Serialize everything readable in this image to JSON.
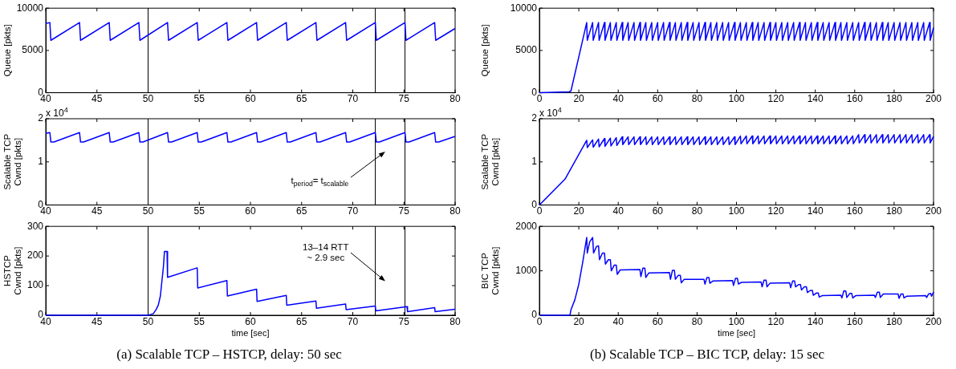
{
  "chart_data": [
    {
      "type": "line",
      "ylabel": "Queue [pkts]",
      "xlim": [
        40,
        80
      ],
      "xticks": [
        40,
        45,
        50,
        55,
        60,
        65,
        70,
        75,
        80
      ],
      "ylim": [
        0,
        10000
      ],
      "yticks": [
        0,
        5000,
        10000
      ],
      "ref_lines": [
        {
          "axis": "x",
          "value": 50
        },
        {
          "axis": "x",
          "value": 72.2
        },
        {
          "axis": "x",
          "value": 75.1
        }
      ],
      "series": [
        {
          "color": "#0000ff",
          "x": [
            40,
            40.4,
            40.5,
            43.3,
            43.4,
            46.2,
            46.3,
            49.1,
            49.2,
            51.9,
            52,
            54.8,
            54.9,
            57.7,
            57.8,
            60.6,
            60.7,
            63.5,
            63.6,
            66.4,
            66.5,
            69.3,
            69.4,
            72.2,
            72.3,
            75.1,
            75.2,
            78,
            78.1,
            80
          ],
          "values": [
            8200,
            8300,
            6200,
            8300,
            6200,
            8300,
            6200,
            8300,
            6200,
            8300,
            6200,
            8300,
            6200,
            8300,
            6200,
            8300,
            6200,
            8300,
            6200,
            8300,
            6200,
            8300,
            6200,
            8300,
            6200,
            8300,
            6200,
            8300,
            6200,
            7600
          ]
        }
      ]
    },
    {
      "type": "line",
      "ylabel": "Queue [pkts]",
      "xlim": [
        0,
        200
      ],
      "xticks": [
        0,
        20,
        40,
        60,
        80,
        100,
        120,
        140,
        160,
        180,
        200
      ],
      "ylim": [
        0,
        10000
      ],
      "yticks": [
        0,
        5000,
        10000
      ],
      "series": [
        {
          "color": "#0000ff",
          "x": [
            0,
            15,
            16,
            24,
            24.3,
            27,
            27.3,
            30,
            30.3,
            33,
            33.3,
            36,
            36.3,
            39,
            39.3,
            42,
            42.3,
            45,
            45.3,
            48,
            48.3,
            51,
            51.3,
            54,
            54.3,
            57,
            57.3,
            60,
            60.3,
            63,
            63.3,
            66,
            66.3,
            69,
            69.3,
            72,
            72.3,
            75,
            75.3,
            78,
            78.3,
            81,
            81.3,
            84,
            84.3,
            87,
            87.3,
            90,
            90.3,
            93,
            93.3,
            96,
            96.3,
            99,
            99.3,
            102,
            102.3,
            105,
            105.3,
            108,
            108.3,
            111,
            111.3,
            114,
            114.3,
            117,
            117.3,
            120,
            120.3,
            123,
            123.3,
            126,
            126.3,
            129,
            129.3,
            132,
            132.3,
            135,
            135.3,
            138,
            138.3,
            141,
            141.3,
            144,
            144.3,
            147,
            147.3,
            150,
            150.3,
            153,
            153.3,
            156,
            156.3,
            159,
            159.3,
            162,
            162.3,
            165,
            165.3,
            168,
            168.3,
            171,
            171.3,
            174,
            174.3,
            177,
            177.3,
            180,
            180.3,
            183,
            183.3,
            186,
            186.3,
            189,
            189.3,
            192,
            192.3,
            195,
            195.3,
            198,
            198.3,
            200
          ],
          "values": [
            0,
            100,
            200,
            8300,
            6200,
            8300,
            6200,
            8300,
            6200,
            8300,
            6200,
            8300,
            6200,
            8300,
            6200,
            8300,
            6200,
            8300,
            6200,
            8300,
            6200,
            8300,
            6200,
            8300,
            6200,
            8300,
            6200,
            8300,
            6200,
            8300,
            6200,
            8300,
            6200,
            8300,
            6200,
            8300,
            6200,
            8300,
            6200,
            8300,
            6200,
            8300,
            6200,
            8300,
            6200,
            8300,
            6200,
            8300,
            6200,
            8300,
            6200,
            8300,
            6200,
            8300,
            6200,
            8300,
            6200,
            8300,
            6200,
            8300,
            6200,
            8300,
            6200,
            8300,
            6200,
            8300,
            6200,
            8300,
            6200,
            8300,
            6200,
            8300,
            6200,
            8300,
            6200,
            8300,
            6200,
            8300,
            6200,
            8300,
            6200,
            8300,
            6200,
            8300,
            6200,
            8300,
            6200,
            8300,
            6200,
            8300,
            6200,
            8300,
            6200,
            8300,
            6200,
            8300,
            6200,
            8300,
            6200,
            8300,
            6200,
            8300,
            6200,
            8300,
            6200,
            8300,
            6200,
            8300,
            6200,
            8300,
            6200,
            8300,
            6200,
            8300,
            6200,
            8300,
            6200,
            8300,
            6200,
            8300,
            6200,
            7700
          ]
        }
      ]
    },
    {
      "type": "line",
      "subtitle": "x 10$^{4}$",
      "ylabel": "Scalable TCP\nCwnd [pkts]",
      "xlim": [
        40,
        80
      ],
      "xticks": [
        40,
        45,
        50,
        55,
        60,
        65,
        70,
        75,
        80
      ],
      "ylim": [
        0,
        2
      ],
      "yticks": [
        0,
        1,
        2
      ],
      "ref_lines": [
        {
          "axis": "x",
          "value": 50
        },
        {
          "axis": "x",
          "value": 72.2
        },
        {
          "axis": "x",
          "value": 75.1
        }
      ],
      "annotations": [
        "t$_{period}$= t$_{scalable}$"
      ],
      "series": [
        {
          "color": "#0000ff",
          "x": [
            40,
            40.4,
            40.5,
            40.8,
            43.3,
            43.4,
            43.7,
            46.2,
            46.3,
            46.6,
            49.1,
            49.2,
            49.5,
            51.9,
            52,
            52.3,
            54.8,
            54.9,
            55.2,
            57.7,
            57.8,
            58.1,
            60.6,
            60.7,
            61,
            63.5,
            63.6,
            63.9,
            66.4,
            66.5,
            66.8,
            69.3,
            69.4,
            69.7,
            72.2,
            72.3,
            72.6,
            75.1,
            75.2,
            75.5,
            78,
            78.1,
            78.4,
            80
          ],
          "values": [
            1.66,
            1.68,
            1.46,
            1.46,
            1.68,
            1.46,
            1.46,
            1.68,
            1.46,
            1.46,
            1.68,
            1.46,
            1.46,
            1.68,
            1.46,
            1.46,
            1.68,
            1.46,
            1.46,
            1.68,
            1.46,
            1.46,
            1.68,
            1.46,
            1.46,
            1.68,
            1.46,
            1.46,
            1.68,
            1.46,
            1.46,
            1.68,
            1.46,
            1.46,
            1.68,
            1.46,
            1.46,
            1.68,
            1.46,
            1.46,
            1.68,
            1.46,
            1.46,
            1.59
          ]
        }
      ]
    },
    {
      "type": "line",
      "subtitle": "x 10$^{4}$",
      "ylabel": "Scalable TCP\nCwnd [pkts]",
      "xlim": [
        0,
        200
      ],
      "xticks": [
        0,
        20,
        40,
        60,
        80,
        100,
        120,
        140,
        160,
        180,
        200
      ],
      "ylim": [
        0,
        2
      ],
      "yticks": [
        0,
        1,
        2
      ],
      "series": [
        {
          "color": "#0000ff",
          "x": [
            0,
            13,
            24,
            24.3,
            27,
            27.3,
            30,
            30.3,
            33,
            33.3,
            36,
            36.3,
            39,
            39.3,
            42,
            42.3,
            45,
            45.3,
            48,
            48.3,
            51,
            51.3,
            54,
            54.3,
            57,
            57.3,
            60,
            60.3,
            63,
            63.3,
            66,
            66.3,
            69,
            69.3,
            72,
            72.3,
            75,
            75.3,
            78,
            78.3,
            81,
            81.3,
            84,
            84.3,
            87,
            87.3,
            90,
            90.3,
            93,
            93.3,
            96,
            96.3,
            99,
            99.3,
            102,
            102.3,
            105,
            105.3,
            108,
            108.3,
            111,
            111.3,
            114,
            114.3,
            117,
            117.3,
            120,
            120.3,
            123,
            123.3,
            126,
            126.3,
            129,
            129.3,
            132,
            132.3,
            135,
            135.3,
            138,
            138.3,
            141,
            141.3,
            144,
            144.3,
            147,
            147.3,
            150,
            150.3,
            153,
            153.3,
            156,
            156.3,
            159,
            159.3,
            162,
            162.3,
            165,
            165.3,
            168,
            168.3,
            171,
            171.3,
            174,
            174.3,
            177,
            177.3,
            180,
            180.3,
            183,
            183.3,
            186,
            186.3,
            189,
            189.3,
            192,
            192.3,
            195,
            195.3,
            198,
            198.3,
            200
          ],
          "values": [
            0,
            0.6,
            1.5,
            1.33,
            1.51,
            1.34,
            1.53,
            1.35,
            1.54,
            1.36,
            1.55,
            1.37,
            1.56,
            1.38,
            1.58,
            1.4,
            1.58,
            1.4,
            1.58,
            1.4,
            1.58,
            1.4,
            1.58,
            1.4,
            1.58,
            1.4,
            1.58,
            1.4,
            1.58,
            1.4,
            1.58,
            1.4,
            1.58,
            1.4,
            1.58,
            1.4,
            1.58,
            1.4,
            1.58,
            1.4,
            1.58,
            1.4,
            1.58,
            1.4,
            1.58,
            1.4,
            1.58,
            1.4,
            1.58,
            1.4,
            1.58,
            1.4,
            1.58,
            1.4,
            1.6,
            1.42,
            1.6,
            1.42,
            1.6,
            1.42,
            1.6,
            1.42,
            1.6,
            1.42,
            1.6,
            1.42,
            1.6,
            1.42,
            1.6,
            1.42,
            1.6,
            1.42,
            1.6,
            1.42,
            1.6,
            1.42,
            1.6,
            1.42,
            1.6,
            1.42,
            1.6,
            1.42,
            1.6,
            1.42,
            1.6,
            1.42,
            1.6,
            1.42,
            1.6,
            1.42,
            1.6,
            1.42,
            1.6,
            1.42,
            1.63,
            1.44,
            1.63,
            1.44,
            1.63,
            1.44,
            1.63,
            1.44,
            1.63,
            1.44,
            1.63,
            1.44,
            1.63,
            1.44,
            1.63,
            1.44,
            1.63,
            1.44,
            1.63,
            1.44,
            1.63,
            1.44,
            1.63,
            1.44,
            1.63,
            1.44,
            1.59
          ]
        }
      ]
    },
    {
      "type": "line",
      "title": "(a) Scalable TCP – HSTCP, delay: 50 sec",
      "xlabel": "time [sec]",
      "ylabel": "HSTCP\nCwnd [pkts]",
      "xlim": [
        40,
        80
      ],
      "xticks": [
        40,
        45,
        50,
        55,
        60,
        65,
        70,
        75,
        80
      ],
      "ylim": [
        0,
        300
      ],
      "yticks": [
        0,
        100,
        200,
        300
      ],
      "ref_lines": [
        {
          "axis": "x",
          "value": 50
        },
        {
          "axis": "x",
          "value": 72.2
        },
        {
          "axis": "x",
          "value": 75.1
        }
      ],
      "annotations": [
        "13–14 RTT\n~ 2.9 sec"
      ],
      "series": [
        {
          "color": "#0000ff",
          "x": [
            40,
            50,
            50.5,
            50.8,
            51,
            51.2,
            51.35,
            51.5,
            51.6,
            51.85,
            51.9,
            54.8,
            54.85,
            57.7,
            57.75,
            60.6,
            60.65,
            63.5,
            63.55,
            66.4,
            66.45,
            69.3,
            69.35,
            72.2,
            72.25,
            75.3,
            75.35,
            78,
            78.05,
            80
          ],
          "values": [
            0,
            0,
            5,
            20,
            35,
            65,
            115,
            165,
            215,
            215,
            128,
            160,
            92,
            117,
            65,
            88,
            47,
            67,
            34,
            48,
            24,
            38,
            19,
            31,
            15,
            29,
            12,
            26,
            12,
            20
          ]
        }
      ]
    },
    {
      "type": "line",
      "title": "(b) Scalable TCP – BIC TCP, delay: 15 sec",
      "xlabel": "time [sec]",
      "ylabel": "BIC TCP\nCwnd [pkts]",
      "xlim": [
        0,
        200
      ],
      "xticks": [
        0,
        20,
        40,
        60,
        80,
        100,
        120,
        140,
        160,
        180,
        200
      ],
      "ylim": [
        0,
        2000
      ],
      "yticks": [
        0,
        1000,
        2000
      ],
      "series": [
        {
          "color": "#0000ff",
          "x": [
            0,
            15.5,
            16,
            18,
            20,
            22,
            24,
            24.3,
            25.5,
            27,
            27.5,
            29,
            30,
            30.5,
            32,
            33,
            33.5,
            35,
            36,
            36.5,
            38,
            39,
            39.5,
            41,
            51,
            51.5,
            52.5,
            53.5,
            54,
            55.5,
            66,
            66.5,
            67.5,
            68.5,
            69,
            70.5,
            71.5,
            72,
            73.5,
            83.5,
            84,
            85,
            86,
            86.5,
            88,
            98,
            98.5,
            99.5,
            100.5,
            101,
            102.5,
            112.5,
            113,
            114,
            115,
            115.5,
            117,
            127,
            127.5,
            128.5,
            129.5,
            130,
            131.5,
            132.5,
            133,
            134.5,
            135.5,
            136,
            137.5,
            138.5,
            139,
            140.5,
            141.5,
            142,
            143.5,
            153,
            153.5,
            154.5,
            155.5,
            156,
            157.5,
            158.5,
            159,
            160.5,
            170,
            170.5,
            171.5,
            172.5,
            173,
            174.5,
            182,
            182.5,
            183.5,
            184.5,
            185,
            186.5,
            196,
            196.5,
            197.5,
            198.5,
            199,
            200
          ],
          "values": [
            0,
            0,
            120,
            350,
            700,
            1200,
            1750,
            1400,
            1650,
            1750,
            1400,
            1550,
            1560,
            1250,
            1400,
            1400,
            1150,
            1250,
            1250,
            1000,
            1130,
            1130,
            920,
            1020,
            1030,
            870,
            1060,
            1060,
            850,
            950,
            960,
            810,
            1010,
            1010,
            810,
            900,
            900,
            730,
            810,
            810,
            700,
            850,
            850,
            720,
            770,
            780,
            670,
            830,
            830,
            700,
            740,
            750,
            640,
            790,
            790,
            640,
            720,
            730,
            620,
            770,
            770,
            640,
            690,
            690,
            570,
            640,
            640,
            510,
            560,
            560,
            450,
            500,
            500,
            410,
            440,
            450,
            390,
            550,
            540,
            400,
            490,
            490,
            390,
            440,
            450,
            400,
            520,
            520,
            400,
            480,
            480,
            380,
            480,
            480,
            390,
            430,
            440,
            400,
            480,
            490,
            430,
            520
          ]
        }
      ]
    }
  ]
}
